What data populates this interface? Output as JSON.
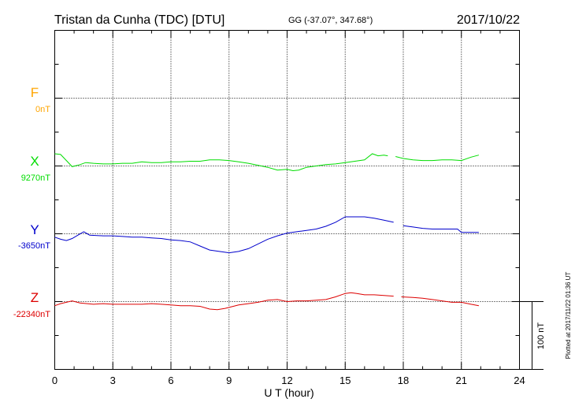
{
  "header": {
    "station": "Tristan da Cunha (TDC)  [DTU]",
    "coords": "GG (-37.07°, 347.68°)",
    "date": "2017/10/22"
  },
  "side_note": "Plotted at 2017/11/22 01:36 UT",
  "scale_label": "100 nT",
  "chart_data": {
    "type": "line",
    "xlabel": "U T (hour)",
    "xlim": [
      0,
      24
    ],
    "xticks": [
      0,
      3,
      6,
      9,
      12,
      15,
      18,
      21,
      24
    ],
    "grid": true,
    "scale_bar_nT": 100,
    "series": [
      {
        "name": "F",
        "baseline_label": "0nT",
        "color": "#ffa500",
        "points": []
      },
      {
        "name": "X",
        "baseline_label": "9270nT",
        "color": "#00dd00",
        "points": [
          [
            0,
            18
          ],
          [
            0.3,
            17
          ],
          [
            0.6,
            8
          ],
          [
            0.9,
            -1
          ],
          [
            1.3,
            2
          ],
          [
            1.6,
            5
          ],
          [
            2,
            4
          ],
          [
            2.5,
            3
          ],
          [
            3,
            3
          ],
          [
            3.5,
            4
          ],
          [
            4,
            4
          ],
          [
            4.5,
            6
          ],
          [
            5,
            5
          ],
          [
            5.5,
            5
          ],
          [
            6,
            6
          ],
          [
            6.5,
            6
          ],
          [
            7,
            7
          ],
          [
            7.5,
            7
          ],
          [
            8,
            9
          ],
          [
            8.5,
            9
          ],
          [
            9,
            8
          ],
          [
            9.5,
            6
          ],
          [
            10,
            4
          ],
          [
            10.5,
            1
          ],
          [
            11,
            -2
          ],
          [
            11.5,
            -6
          ],
          [
            12,
            -5
          ],
          [
            12.3,
            -7
          ],
          [
            12.6,
            -6
          ],
          [
            13,
            -2
          ],
          [
            13.5,
            0
          ],
          [
            14,
            2
          ],
          [
            14.5,
            3
          ],
          [
            15,
            5
          ],
          [
            15.5,
            7
          ],
          [
            16,
            9
          ],
          [
            16.4,
            18
          ],
          [
            16.7,
            15
          ],
          [
            17,
            16
          ],
          [
            17.2,
            15
          ]
        ],
        "points_2": [
          [
            17.6,
            14
          ],
          [
            18,
            11
          ],
          [
            18.5,
            9
          ],
          [
            19,
            8
          ],
          [
            19.5,
            8
          ],
          [
            20,
            9
          ],
          [
            20.5,
            9
          ],
          [
            21,
            8
          ],
          [
            21.5,
            13
          ],
          [
            21.9,
            16
          ]
        ]
      },
      {
        "name": "Y",
        "baseline_label": "-3650nT",
        "color": "#0000cc",
        "points": [
          [
            0,
            -5
          ],
          [
            0.3,
            -8
          ],
          [
            0.6,
            -10
          ],
          [
            0.9,
            -7
          ],
          [
            1.2,
            -2
          ],
          [
            1.5,
            3
          ],
          [
            1.8,
            -2
          ],
          [
            2.5,
            -3
          ],
          [
            3,
            -3
          ],
          [
            3.5,
            -4
          ],
          [
            4,
            -5
          ],
          [
            4.5,
            -5
          ],
          [
            5,
            -6
          ],
          [
            5.5,
            -7
          ],
          [
            6,
            -9
          ],
          [
            6.5,
            -10
          ],
          [
            7,
            -12
          ],
          [
            7.5,
            -18
          ],
          [
            8,
            -24
          ],
          [
            8.5,
            -26
          ],
          [
            9,
            -28
          ],
          [
            9.5,
            -26
          ],
          [
            10,
            -22
          ],
          [
            10.5,
            -15
          ],
          [
            11,
            -8
          ],
          [
            11.5,
            -3
          ],
          [
            12,
            1
          ],
          [
            12.5,
            3
          ],
          [
            13,
            5
          ],
          [
            13.5,
            7
          ],
          [
            14,
            11
          ],
          [
            14.5,
            17
          ],
          [
            15,
            25
          ],
          [
            15.5,
            25
          ],
          [
            16,
            25
          ],
          [
            16.5,
            23
          ],
          [
            17,
            20
          ],
          [
            17.5,
            17
          ]
        ],
        "points_2": [
          [
            18,
            12
          ],
          [
            18.5,
            10
          ],
          [
            19,
            8
          ],
          [
            19.5,
            7
          ],
          [
            20,
            7
          ],
          [
            20.5,
            7
          ],
          [
            20.8,
            7
          ],
          [
            21,
            2
          ],
          [
            21.5,
            2
          ],
          [
            21.9,
            2
          ]
        ]
      },
      {
        "name": "Z",
        "baseline_label": "-22340nT",
        "color": "#dd0000",
        "points": [
          [
            0,
            -6
          ],
          [
            0.3,
            -3
          ],
          [
            0.6,
            -1
          ],
          [
            0.9,
            1
          ],
          [
            1.3,
            -2
          ],
          [
            2,
            -4
          ],
          [
            2.5,
            -3
          ],
          [
            3,
            -4
          ],
          [
            3.5,
            -4
          ],
          [
            4,
            -4
          ],
          [
            4.5,
            -4
          ],
          [
            5,
            -3
          ],
          [
            5.5,
            -4
          ],
          [
            6,
            -5
          ],
          [
            6.5,
            -6
          ],
          [
            7,
            -6
          ],
          [
            7.5,
            -7
          ],
          [
            8,
            -11
          ],
          [
            8.4,
            -12
          ],
          [
            8.8,
            -10
          ],
          [
            9.5,
            -5
          ],
          [
            10,
            -3
          ],
          [
            10.5,
            -1
          ],
          [
            11,
            2
          ],
          [
            11.5,
            3
          ],
          [
            12,
            0
          ],
          [
            12.5,
            1
          ],
          [
            13,
            1
          ],
          [
            13.5,
            2
          ],
          [
            14,
            3
          ],
          [
            14.5,
            7
          ],
          [
            15,
            12
          ],
          [
            15.3,
            13
          ],
          [
            15.6,
            12
          ],
          [
            16,
            10
          ],
          [
            16.5,
            10
          ],
          [
            17,
            9
          ],
          [
            17.5,
            8
          ]
        ],
        "points_2": [
          [
            17.9,
            7
          ],
          [
            18.5,
            6
          ],
          [
            19,
            5
          ],
          [
            19.5,
            3
          ],
          [
            20,
            1
          ],
          [
            20.5,
            -1
          ],
          [
            21,
            -1
          ],
          [
            21.5,
            -4
          ],
          [
            21.9,
            -6
          ]
        ]
      }
    ]
  }
}
